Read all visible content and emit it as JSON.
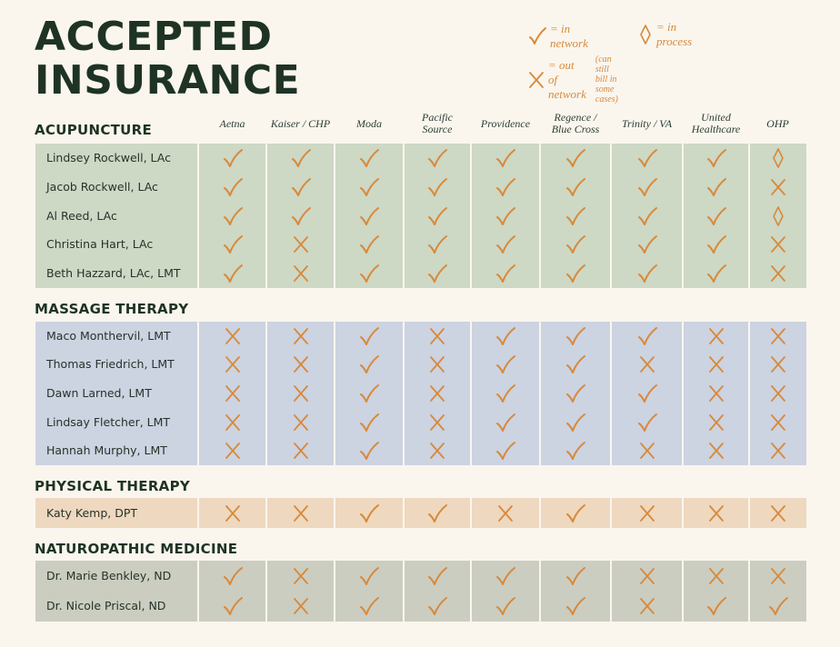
{
  "title": {
    "line1": "ACCEPTED",
    "line2": "INSURANCE"
  },
  "legend": {
    "in_network": "= in network",
    "in_process": "= in process",
    "out_network": "= out of network",
    "out_note": "(can still bill in some cases)"
  },
  "colors": {
    "mark": "#d8893a",
    "title": "#1e3324",
    "background": "#faf6ee"
  },
  "columns": [
    [
      "Aetna"
    ],
    [
      "Kaiser / CHP"
    ],
    [
      "Moda"
    ],
    [
      "Pacific",
      "Source"
    ],
    [
      "Providence"
    ],
    [
      "Regence /",
      "Blue Cross"
    ],
    [
      "Trinity / VA"
    ],
    [
      "United",
      "Healthcare"
    ],
    [
      "OHP"
    ]
  ],
  "sections": [
    {
      "name": "ACUPUNCTURE",
      "color": "#cdd8c5",
      "rows": [
        {
          "name": "Lindsey Rockwell, LAc",
          "marks": [
            "check",
            "check",
            "check",
            "check",
            "check",
            "check",
            "check",
            "check",
            "diamond"
          ]
        },
        {
          "name": "Jacob Rockwell, LAc",
          "marks": [
            "check",
            "check",
            "check",
            "check",
            "check",
            "check",
            "check",
            "check",
            "x"
          ]
        },
        {
          "name": "Al Reed, LAc",
          "marks": [
            "check",
            "check",
            "check",
            "check",
            "check",
            "check",
            "check",
            "check",
            "diamond"
          ]
        },
        {
          "name": "Christina Hart, LAc",
          "marks": [
            "check",
            "x",
            "check",
            "check",
            "check",
            "check",
            "check",
            "check",
            "x"
          ]
        },
        {
          "name": "Beth Hazzard, LAc, LMT",
          "marks": [
            "check",
            "x",
            "check",
            "check",
            "check",
            "check",
            "check",
            "check",
            "x"
          ]
        }
      ]
    },
    {
      "name": "MASSAGE THERAPY",
      "color": "#ccd3e1",
      "rows": [
        {
          "name": "Maco Monthervil, LMT",
          "marks": [
            "x",
            "x",
            "check",
            "x",
            "check",
            "check",
            "check",
            "x",
            "x"
          ]
        },
        {
          "name": "Thomas Friedrich, LMT",
          "marks": [
            "x",
            "x",
            "check",
            "x",
            "check",
            "check",
            "x",
            "x",
            "x"
          ]
        },
        {
          "name": "Dawn Larned, LMT",
          "marks": [
            "x",
            "x",
            "check",
            "x",
            "check",
            "check",
            "check",
            "x",
            "x"
          ]
        },
        {
          "name": "Lindsay Fletcher, LMT",
          "marks": [
            "x",
            "x",
            "check",
            "x",
            "check",
            "check",
            "check",
            "x",
            "x"
          ]
        },
        {
          "name": "Hannah Murphy, LMT",
          "marks": [
            "x",
            "x",
            "check",
            "x",
            "check",
            "check",
            "x",
            "x",
            "x"
          ]
        }
      ]
    },
    {
      "name": "PHYSICAL THERAPY",
      "color": "#eed8bf",
      "rows": [
        {
          "name": "Katy Kemp, DPT",
          "marks": [
            "x",
            "x",
            "check",
            "check",
            "x",
            "check",
            "x",
            "x",
            "x"
          ]
        }
      ]
    },
    {
      "name": "NATUROPATHIC MEDICINE",
      "color": "#cbcdc1",
      "rows": [
        {
          "name": "Dr. Marie Benkley, ND",
          "marks": [
            "check",
            "x",
            "check",
            "check",
            "check",
            "check",
            "x",
            "x",
            "x"
          ]
        },
        {
          "name": "Dr. Nicole Priscal, ND",
          "marks": [
            "check",
            "x",
            "check",
            "check",
            "check",
            "check",
            "x",
            "check",
            "check"
          ]
        }
      ]
    }
  ]
}
